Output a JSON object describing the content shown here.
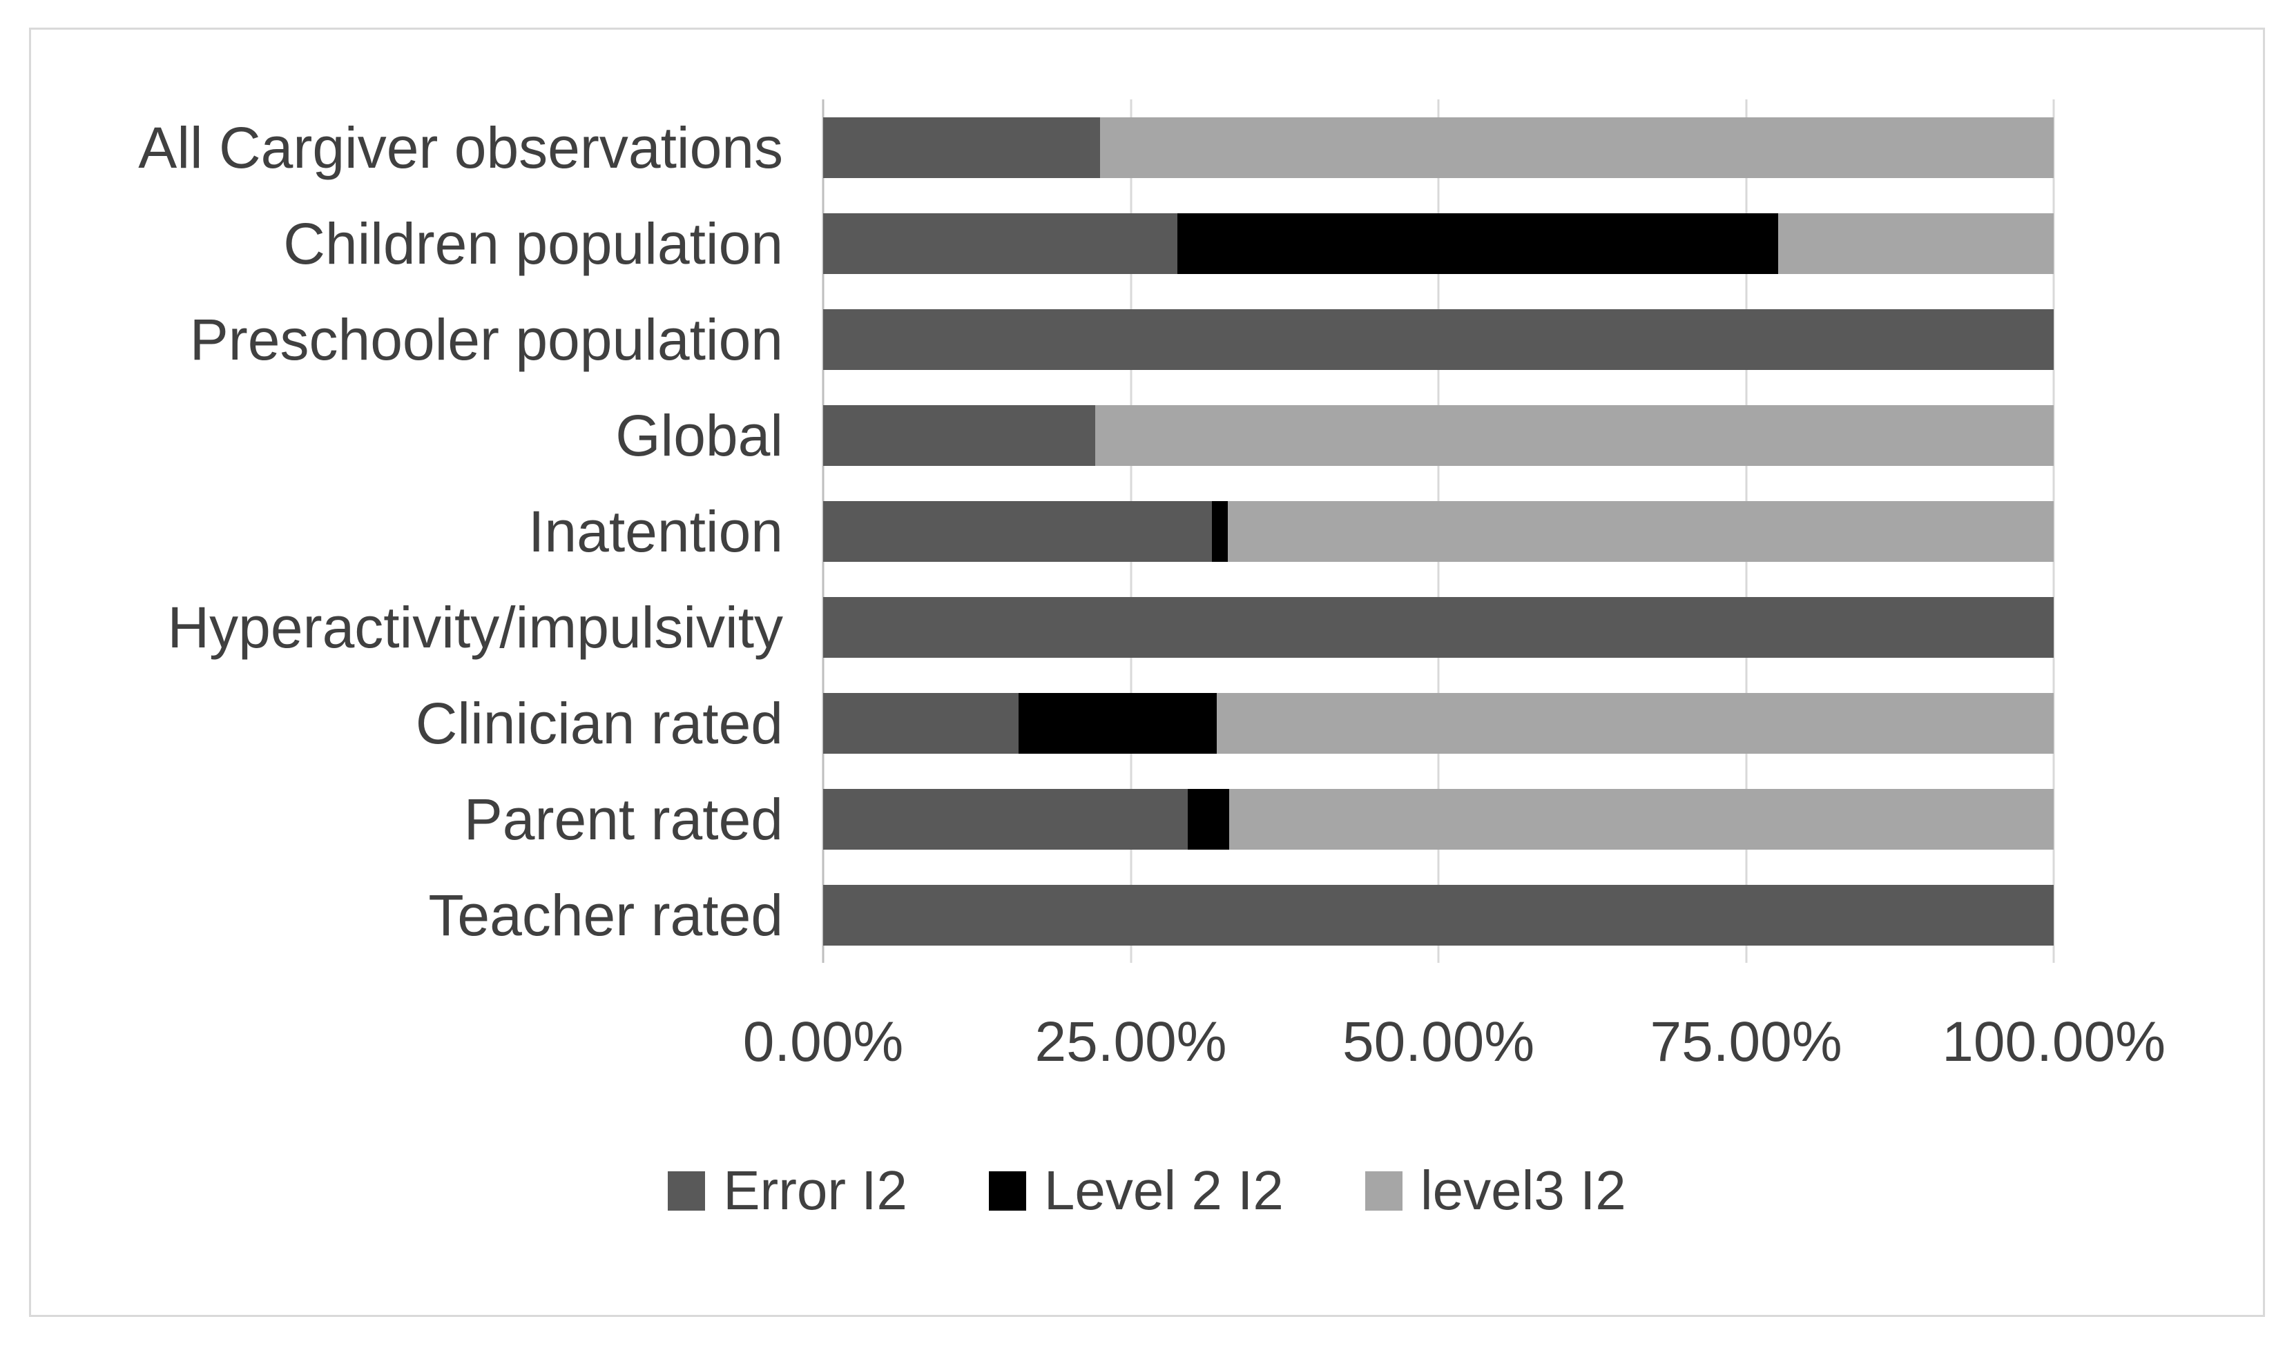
{
  "chart_data": {
    "type": "bar",
    "orientation": "horizontal-stacked",
    "title": "",
    "xlabel": "",
    "ylabel": "",
    "xlim": [
      0,
      100
    ],
    "grid": true,
    "legend_position": "bottom",
    "x_ticks": [
      "0.00%",
      "25.00%",
      "50.00%",
      "75.00%",
      "100.00%"
    ],
    "x_tick_values": [
      0,
      25,
      50,
      75,
      100
    ],
    "categories": [
      "All Cargiver observations",
      "Children population",
      "Preschooler population",
      "Global",
      "Inatention",
      "Hyperactivity/impulsivity",
      "Clinician rated",
      "Parent rated",
      "Teacher rated"
    ],
    "series": [
      {
        "name": "Error I2",
        "color": "#595959",
        "values": [
          22.5,
          28.8,
          100,
          22.1,
          31.6,
          100,
          15.9,
          29.6,
          100
        ]
      },
      {
        "name": "Level 2 I2",
        "color": "#000000",
        "values": [
          0,
          48.8,
          0,
          0,
          1.3,
          0,
          16.1,
          3.4,
          0
        ]
      },
      {
        "name": "level3 I2",
        "color": "#a6a6a6",
        "values": [
          77.5,
          22.4,
          0,
          77.9,
          67.1,
          0,
          68.0,
          67.0,
          0
        ]
      }
    ]
  },
  "style": {
    "gridline_color": "#d9d9d9",
    "axis_line_color": "#bfbfbf",
    "text_color": "#404040",
    "frame_border_color": "#d9d9d9",
    "background_color": "#ffffff"
  }
}
